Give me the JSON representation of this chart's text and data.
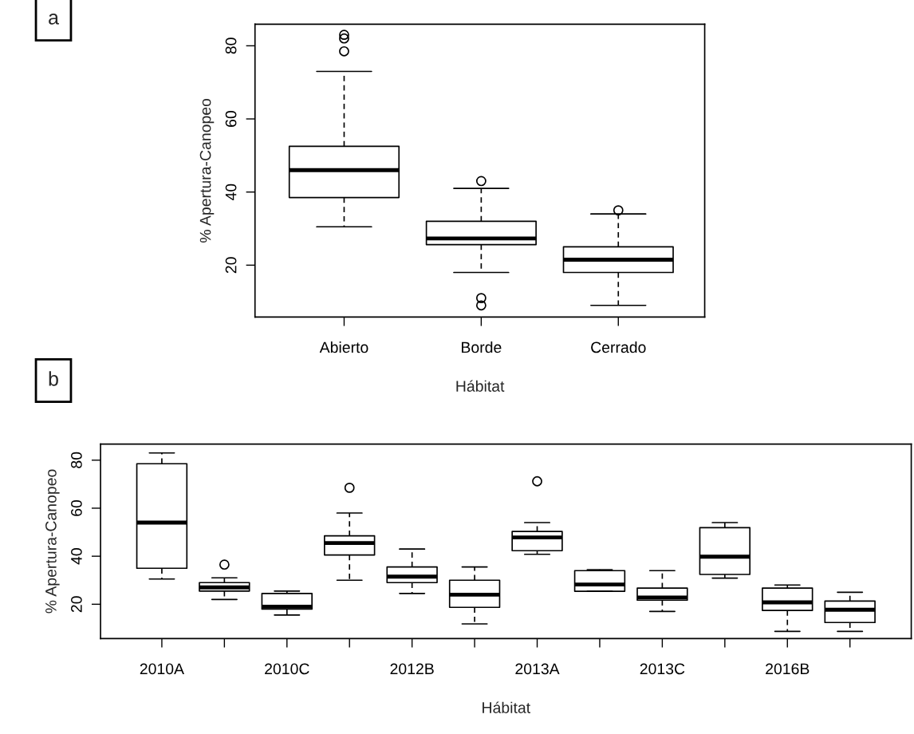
{
  "chart_data": [
    {
      "type": "box",
      "xlabel": "Hábitat",
      "ylabel": "% Apertura-Canopeo",
      "annotations": [
        "a"
      ],
      "grid": false,
      "categories": [
        "Abierto",
        "Borde",
        "Cerrado"
      ],
      "ylim": [
        5.8,
        85.9
      ],
      "yticks": [
        20,
        40,
        60,
        80
      ],
      "boxes": [
        {
          "low": 30.5,
          "q1": 38.5,
          "median": 46,
          "q3": 52.5,
          "high": 73,
          "outliers": [
            78.5,
            82,
            83
          ]
        },
        {
          "low": 18,
          "q1": 25.6,
          "median": 27.3,
          "q3": 32,
          "high": 41,
          "outliers": [
            43,
            11,
            9
          ]
        },
        {
          "low": 9,
          "q1": 18,
          "median": 21.5,
          "q3": 25,
          "high": 34,
          "outliers": [
            35
          ]
        }
      ]
    },
    {
      "type": "box",
      "xlabel": "Hábitat",
      "ylabel": "% Apertura-Canopeo",
      "annotations": [
        "b"
      ],
      "grid": false,
      "categories": [
        "2010A",
        null,
        "2010C",
        null,
        "2012B",
        null,
        "2013A",
        null,
        "2013C",
        null,
        "2016B",
        null
      ],
      "ylim": [
        5.7,
        86.7
      ],
      "yticks": [
        20,
        40,
        60,
        80
      ],
      "boxes": [
        {
          "low": 30.5,
          "q1": 35,
          "median": 54,
          "q3": 78.5,
          "high": 83
        },
        {
          "low": 22,
          "q1": 25.5,
          "median": 27,
          "q3": 29,
          "high": 31,
          "outliers": [
            36.5
          ]
        },
        {
          "low": 15.5,
          "q1": 18,
          "median": 19,
          "q3": 24.5,
          "high": 25.5
        },
        {
          "low": 30,
          "q1": 40.5,
          "median": 45.5,
          "q3": 48.5,
          "high": 58,
          "outliers": [
            68.5
          ]
        },
        {
          "low": 24.5,
          "q1": 29,
          "median": 31.5,
          "q3": 35.5,
          "high": 43
        },
        {
          "low": 11.8,
          "q1": 18.7,
          "median": 24,
          "q3": 30,
          "high": 35.5
        },
        {
          "low": 40.8,
          "q1": 42.3,
          "median": 47.8,
          "q3": 50.3,
          "high": 54,
          "outliers": [
            71.2
          ]
        },
        {
          "low": 25.4,
          "q1": 25.4,
          "median": 28.2,
          "q3": 34,
          "high": 34.4
        },
        {
          "low": 17,
          "q1": 21.7,
          "median": 22.8,
          "q3": 26.7,
          "high": 34
        },
        {
          "low": 30.9,
          "q1": 32.4,
          "median": 39.8,
          "q3": 51.9,
          "high": 54
        },
        {
          "low": 8.7,
          "q1": 17.4,
          "median": 20.8,
          "q3": 26.7,
          "high": 28
        },
        {
          "low": 8.7,
          "q1": 12.4,
          "median": 17.7,
          "q3": 21.3,
          "high": 25
        }
      ]
    }
  ]
}
